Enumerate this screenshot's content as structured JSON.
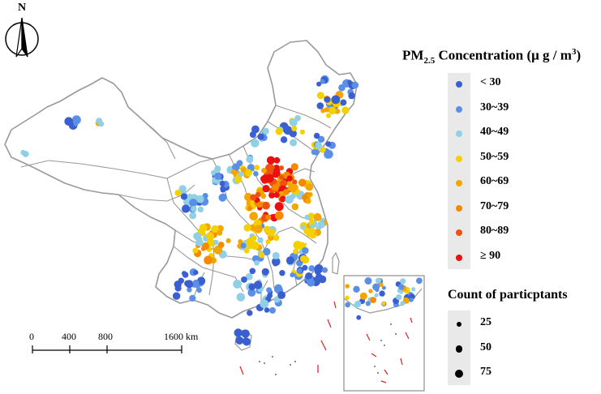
{
  "north_arrow": {
    "label": "N"
  },
  "legend": {
    "title_main": "PM",
    "title_sub": "2.5",
    "title_rest": " Concentration (μ g / m",
    "title_sup": "3",
    "title_end": ")",
    "items": [
      {
        "label": "< 30",
        "color": "#3a5fd0"
      },
      {
        "label": "30~39",
        "color": "#5b8fe6"
      },
      {
        "label": "40~49",
        "color": "#8fd0e6"
      },
      {
        "label": "50~59",
        "color": "#f5d000"
      },
      {
        "label": "60~69",
        "color": "#f5a500"
      },
      {
        "label": "70~79",
        "color": "#f58a00"
      },
      {
        "label": "80~89",
        "color": "#f05010"
      },
      {
        "label": "≥ 90",
        "color": "#e81010"
      }
    ]
  },
  "count_legend": {
    "title": "Count of particptants",
    "items": [
      {
        "label": "25",
        "size": 25
      },
      {
        "label": "50",
        "size": 50
      },
      {
        "label": "75",
        "size": 75
      }
    ]
  },
  "scale_bar": {
    "labels": [
      "0",
      "400",
      "800",
      "1600 km"
    ],
    "values": [
      0,
      400,
      800,
      1600
    ]
  }
}
